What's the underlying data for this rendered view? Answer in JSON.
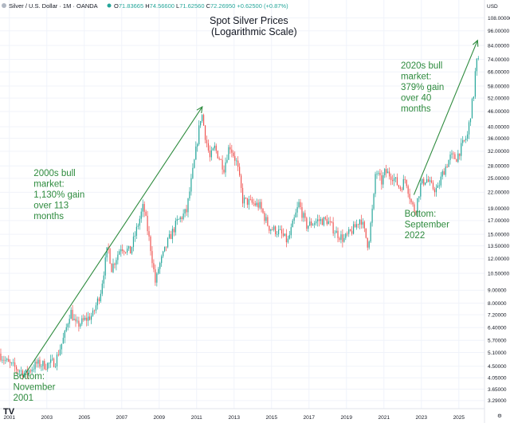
{
  "header": {
    "instrument": "Silver / U.S. Dollar · 1M · OANDA",
    "ohlc": [
      {
        "key": "O",
        "value": "71.83665"
      },
      {
        "key": "H",
        "value": "74.56600"
      },
      {
        "key": "L",
        "value": "71.62560"
      },
      {
        "key": "C",
        "value": "72.26950"
      },
      {
        "key": "",
        "value": "+0.62500 (+0.87%)"
      }
    ],
    "currency": "USD",
    "logo": "TV",
    "colors": {
      "up": "#26a69a",
      "down": "#ef5350",
      "accent": "#2e8b3e"
    }
  },
  "chart_data": {
    "type": "candlestick",
    "title": [
      "Spot Silver Prices",
      "(Logarithmic Scale)"
    ],
    "y_scale": "log",
    "ylim": [
      3.1,
      110
    ],
    "xlim": [
      2000.5,
      2026.2
    ],
    "y_ticks": [
      "108.00000",
      "96.00000",
      "84.00000",
      "74.00000",
      "66.00000",
      "58.00000",
      "52.00000",
      "46.00000",
      "40.00000",
      "36.00000",
      "32.00000",
      "28.00000",
      "25.00000",
      "22.00000",
      "19.00000",
      "17.00000",
      "15.00000",
      "13.50000",
      "12.00000",
      "10.50000",
      "9.00000",
      "8.00000",
      "7.20000",
      "6.40000",
      "5.70000",
      "5.10000",
      "4.50000",
      "4.05000",
      "3.65000",
      "3.29000"
    ],
    "x_ticks": [
      "2001",
      "2003",
      "2005",
      "2007",
      "2009",
      "2011",
      "2013",
      "2015",
      "2017",
      "2019",
      "2021",
      "2023",
      "2025"
    ],
    "price_path": [
      [
        2000.5,
        5.05
      ],
      [
        2001.0,
        4.6
      ],
      [
        2001.9,
        4.2
      ],
      [
        2002.5,
        4.6
      ],
      [
        2003.0,
        4.55
      ],
      [
        2003.5,
        4.7
      ],
      [
        2004.0,
        6.0
      ],
      [
        2004.3,
        7.5
      ],
      [
        2004.6,
        6.5
      ],
      [
        2005.0,
        6.8
      ],
      [
        2005.5,
        7.2
      ],
      [
        2005.9,
        8.8
      ],
      [
        2006.3,
        13.5
      ],
      [
        2006.5,
        11.0
      ],
      [
        2007.0,
        13.4
      ],
      [
        2007.5,
        12.8
      ],
      [
        2008.2,
        19.5
      ],
      [
        2008.6,
        13.0
      ],
      [
        2008.85,
        9.5
      ],
      [
        2009.0,
        11.0
      ],
      [
        2009.5,
        14.0
      ],
      [
        2010.0,
        16.8
      ],
      [
        2010.5,
        18.5
      ],
      [
        2010.9,
        28.5
      ],
      [
        2011.3,
        46.0
      ],
      [
        2011.5,
        37.0
      ],
      [
        2011.75,
        30.0
      ],
      [
        2012.0,
        33.0
      ],
      [
        2012.5,
        27.5
      ],
      [
        2012.8,
        34.0
      ],
      [
        2013.2,
        28.5
      ],
      [
        2013.5,
        20.5
      ],
      [
        2013.9,
        20.0
      ],
      [
        2014.4,
        19.5
      ],
      [
        2014.9,
        16.0
      ],
      [
        2015.5,
        15.2
      ],
      [
        2015.9,
        14.0
      ],
      [
        2016.5,
        19.8
      ],
      [
        2016.9,
        16.2
      ],
      [
        2017.5,
        17.0
      ],
      [
        2018.0,
        17.0
      ],
      [
        2018.5,
        15.2
      ],
      [
        2018.9,
        14.3
      ],
      [
        2019.5,
        16.0
      ],
      [
        2019.8,
        17.5
      ],
      [
        2020.2,
        13.5
      ],
      [
        2020.5,
        21.0
      ],
      [
        2020.6,
        27.0
      ],
      [
        2020.9,
        24.0
      ],
      [
        2021.1,
        26.5
      ],
      [
        2021.5,
        25.5
      ],
      [
        2021.9,
        22.8
      ],
      [
        2022.2,
        25.0
      ],
      [
        2022.5,
        20.0
      ],
      [
        2022.7,
        18.5
      ],
      [
        2023.0,
        23.5
      ],
      [
        2023.3,
        25.0
      ],
      [
        2023.6,
        23.0
      ],
      [
        2023.9,
        22.5
      ],
      [
        2024.2,
        26.5
      ],
      [
        2024.6,
        30.5
      ],
      [
        2024.9,
        30.0
      ],
      [
        2025.2,
        33.5
      ],
      [
        2025.5,
        37.0
      ],
      [
        2025.7,
        47.0
      ],
      [
        2025.85,
        55.0
      ],
      [
        2025.92,
        66.0
      ],
      [
        2026.0,
        72.3
      ]
    ],
    "arrows": [
      {
        "from": [
          2001.9,
          4.25
        ],
        "to": [
          2011.3,
          48.0
        ]
      },
      {
        "from": [
          2022.6,
          21.5
        ],
        "to": [
          2026.0,
          88.0
        ]
      }
    ],
    "annotations": [
      {
        "lines": [
          "2000s bull",
          "market:",
          "",
          "1,130% gain",
          "over 113",
          "months"
        ],
        "x": 2002.3,
        "y": 25.5
      },
      {
        "lines": [
          "2020s bull",
          "market:",
          "",
          "379% gain",
          "over 40",
          "months"
        ],
        "x": 2021.9,
        "y": 68.0
      },
      {
        "lines": [
          "Bottom:",
          "November",
          "2001"
        ],
        "x": 2001.2,
        "y": 4.0
      },
      {
        "lines": [
          "Bottom:",
          "September",
          "2022"
        ],
        "x": 2022.1,
        "y": 17.6
      }
    ]
  }
}
